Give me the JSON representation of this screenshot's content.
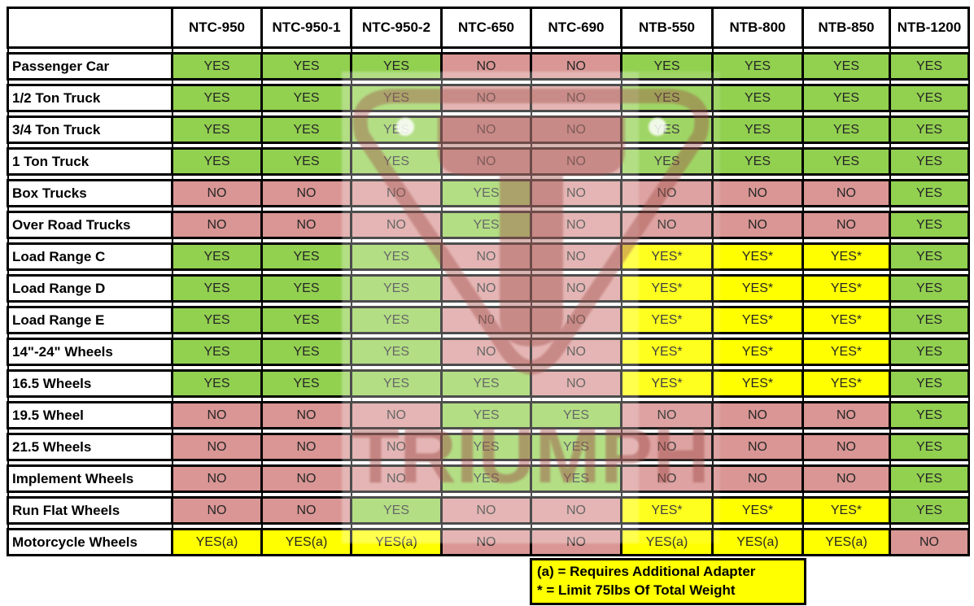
{
  "table": {
    "columns": [
      "NTC-950",
      "NTC-950-1",
      "NTC-950-2",
      "NTC-650",
      "NTC-690",
      "NTB-550",
      "NTB-800",
      "NTB-850",
      "NTB-1200"
    ],
    "rows": [
      {
        "label": "Passenger Car",
        "values": [
          "YES",
          "YES",
          "YES",
          "NO",
          "NO",
          "YES",
          "YES",
          "YES",
          "YES"
        ]
      },
      {
        "label": "1/2 Ton Truck",
        "values": [
          "YES",
          "YES",
          "YES",
          "NO",
          "NO",
          "YES",
          "YES",
          "YES",
          "YES"
        ]
      },
      {
        "label": "3/4 Ton Truck",
        "values": [
          "YES",
          "YES",
          "YES",
          "NO",
          "NO",
          "YES",
          "YES",
          "YES",
          "YES"
        ]
      },
      {
        "label": "1 Ton Truck",
        "values": [
          "YES",
          "YES",
          "YES",
          "NO",
          "NO",
          "YES",
          "YES",
          "YES",
          "YES"
        ]
      },
      {
        "label": "Box Trucks",
        "values": [
          "NO",
          "NO",
          "NO",
          "YES",
          "NO",
          "NO",
          "NO",
          "NO",
          "YES"
        ]
      },
      {
        "label": "Over Road Trucks",
        "values": [
          "NO",
          "NO",
          "NO",
          "YES",
          "NO",
          "NO",
          "NO",
          "NO",
          "YES"
        ]
      },
      {
        "label": "Load Range C",
        "values": [
          "YES",
          "YES",
          "YES",
          "NO",
          "NO",
          "YES*",
          "YES*",
          "YES*",
          "YES"
        ]
      },
      {
        "label": "Load Range D",
        "values": [
          "YES",
          "YES",
          "YES",
          "NO",
          "NO",
          "YES*",
          "YES*",
          "YES*",
          "YES"
        ]
      },
      {
        "label": "Load Range E",
        "values": [
          "YES",
          "YES",
          "YES",
          "N0",
          "NO",
          "YES*",
          "YES*",
          "YES*",
          "YES"
        ]
      },
      {
        "label": "14\"-24\" Wheels",
        "values": [
          "YES",
          "YES",
          "YES",
          "NO",
          "NO",
          "YES*",
          "YES*",
          "YES*",
          "YES"
        ]
      },
      {
        "label": "16.5 Wheels",
        "values": [
          "YES",
          "YES",
          "YES",
          "YES",
          "NO",
          "YES*",
          "YES*",
          "YES*",
          "YES"
        ]
      },
      {
        "label": "19.5 Wheel",
        "values": [
          "NO",
          "NO",
          "NO",
          "YES",
          "YES",
          "NO",
          "NO",
          "NO",
          "YES"
        ]
      },
      {
        "label": "21.5 Wheels",
        "values": [
          "NO",
          "NO",
          "NO",
          "YES",
          "YES",
          "NO",
          "NO",
          "NO",
          "YES"
        ]
      },
      {
        "label": "Implement Wheels",
        "values": [
          "NO",
          "NO",
          "NO",
          "YES",
          "YES",
          "NO",
          "NO",
          "NO",
          "YES"
        ]
      },
      {
        "label": "Run Flat Wheels",
        "values": [
          "NO",
          "NO",
          "YES",
          "NO",
          "NO",
          "YES*",
          "YES*",
          "YES*",
          "YES"
        ]
      },
      {
        "label": "Motorcycle Wheels",
        "values": [
          "YES(a)",
          "YES(a)",
          "YES(a)",
          "NO",
          "NO",
          "YES(a)",
          "YES(a)",
          "YES(a)",
          "NO"
        ]
      }
    ]
  },
  "legend": {
    "line1": "(a) = Requires Additional Adapter",
    "line2": "* = Limit 75lbs Of Total Weight"
  },
  "watermark": {
    "text": "TRIUMPH"
  },
  "colors": {
    "yes": "#92D050",
    "no": "#D99694",
    "conditional": "#FFFF00",
    "legend_bg": "#FFFF00",
    "border": "#000000",
    "watermark": "#9E4A44"
  }
}
